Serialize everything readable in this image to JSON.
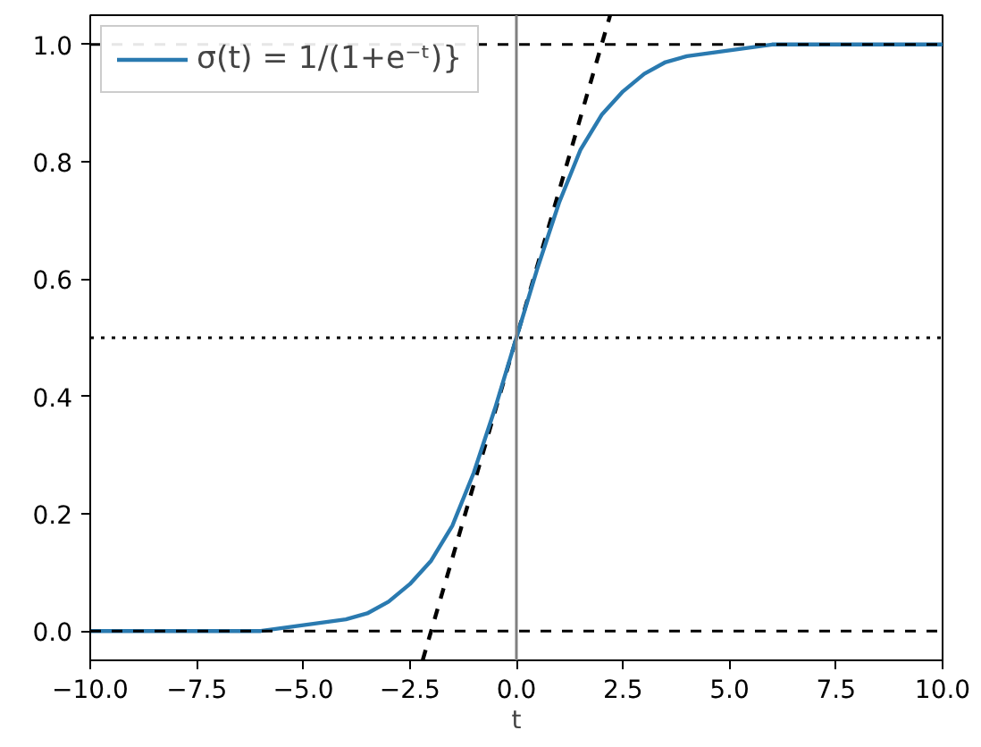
{
  "chart_data": {
    "type": "line",
    "xlabel": "t",
    "xlim": [
      -10,
      10
    ],
    "ylim": [
      -0.05,
      1.05
    ],
    "xticks": [
      {
        "value": -10,
        "label": "−10.0"
      },
      {
        "value": -7.5,
        "label": "−7.5"
      },
      {
        "value": -5,
        "label": "−5.0"
      },
      {
        "value": -2.5,
        "label": "−2.5"
      },
      {
        "value": 0,
        "label": "0.0"
      },
      {
        "value": 2.5,
        "label": "2.5"
      },
      {
        "value": 5,
        "label": "5.0"
      },
      {
        "value": 7.5,
        "label": "7.5"
      },
      {
        "value": 10,
        "label": "10.0"
      }
    ],
    "yticks": [
      {
        "value": 0,
        "label": "0.0"
      },
      {
        "value": 0.2,
        "label": "0.2"
      },
      {
        "value": 0.4,
        "label": "0.4"
      },
      {
        "value": 0.6,
        "label": "0.6"
      },
      {
        "value": 0.8,
        "label": "0.8"
      },
      {
        "value": 1,
        "label": "1.0"
      }
    ],
    "grid": false,
    "legend": "top left",
    "ref_lines": [
      {
        "axis": "y",
        "value": 0,
        "color": "#000000",
        "line_style": "dashed"
      },
      {
        "axis": "y",
        "value": 1,
        "color": "#000000",
        "line_style": "dashed"
      },
      {
        "axis": "y",
        "value": 0.5,
        "color": "#000000",
        "line_style": "dotted"
      },
      {
        "axis": "x",
        "value": 0,
        "color": "#808080",
        "line_style": "solid"
      }
    ],
    "series": [
      {
        "color": "#000000",
        "line_style": "dashed",
        "x": [
          -2.2,
          2.2
        ],
        "values": [
          -0.05,
          1.05
        ]
      },
      {
        "name": "σ(t) = 1/(1+e⁻ᵗ)}",
        "color": "#2a7ab0",
        "line_style": "solid",
        "x": [
          -10,
          -8,
          -6,
          -5,
          -4,
          -3.5,
          -3,
          -2.5,
          -2,
          -1.5,
          -1,
          -0.5,
          -0.25,
          0,
          0.25,
          0.5,
          1,
          1.5,
          2,
          2.5,
          3,
          3.5,
          4,
          5,
          6,
          8,
          10
        ],
        "values": [
          0.0,
          0.0,
          0.0,
          0.01,
          0.02,
          0.03,
          0.05,
          0.08,
          0.12,
          0.18,
          0.27,
          0.38,
          0.44,
          0.5,
          0.56,
          0.62,
          0.73,
          0.82,
          0.88,
          0.92,
          0.95,
          0.97,
          0.98,
          0.99,
          1.0,
          1.0,
          1.0
        ]
      }
    ]
  }
}
